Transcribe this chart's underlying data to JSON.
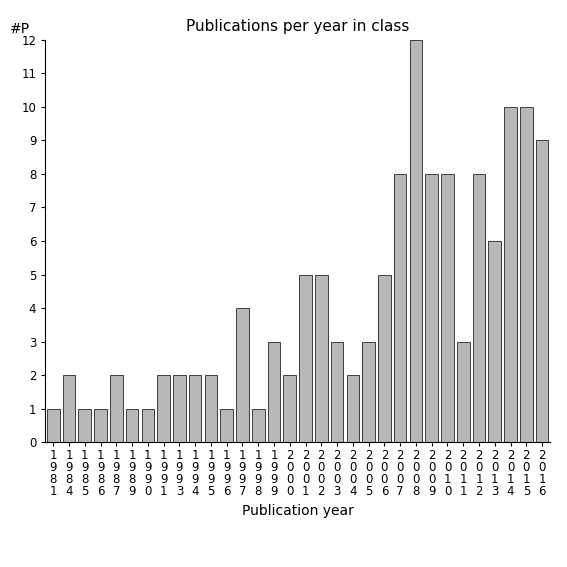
{
  "title": "Publications per year in class",
  "xlabel": "Publication year",
  "ylabel": "#P",
  "years": [
    "1981",
    "1984",
    "1985",
    "1986",
    "1987",
    "1989",
    "1990",
    "1991",
    "1993",
    "1994",
    "1995",
    "1996",
    "1997",
    "1998",
    "1999",
    "2000",
    "2001",
    "2002",
    "2003",
    "2004",
    "2005",
    "2006",
    "2007",
    "2008",
    "2009",
    "2010",
    "2011",
    "2012",
    "2013",
    "2014",
    "2015",
    "2016"
  ],
  "values": [
    1,
    2,
    1,
    1,
    2,
    1,
    1,
    2,
    2,
    2,
    2,
    1,
    4,
    1,
    3,
    2,
    5,
    5,
    3,
    2,
    3,
    5,
    8,
    12,
    8,
    8,
    3,
    8,
    6,
    10,
    10,
    9
  ],
  "bar_color": "#b8b8b8",
  "bar_edge_color": "#000000",
  "ylim": [
    0,
    12
  ],
  "yticks": [
    0,
    1,
    2,
    3,
    4,
    5,
    6,
    7,
    8,
    9,
    10,
    11,
    12
  ],
  "background_color": "#ffffff",
  "title_fontsize": 11,
  "axis_fontsize": 10,
  "tick_fontsize": 8.5
}
